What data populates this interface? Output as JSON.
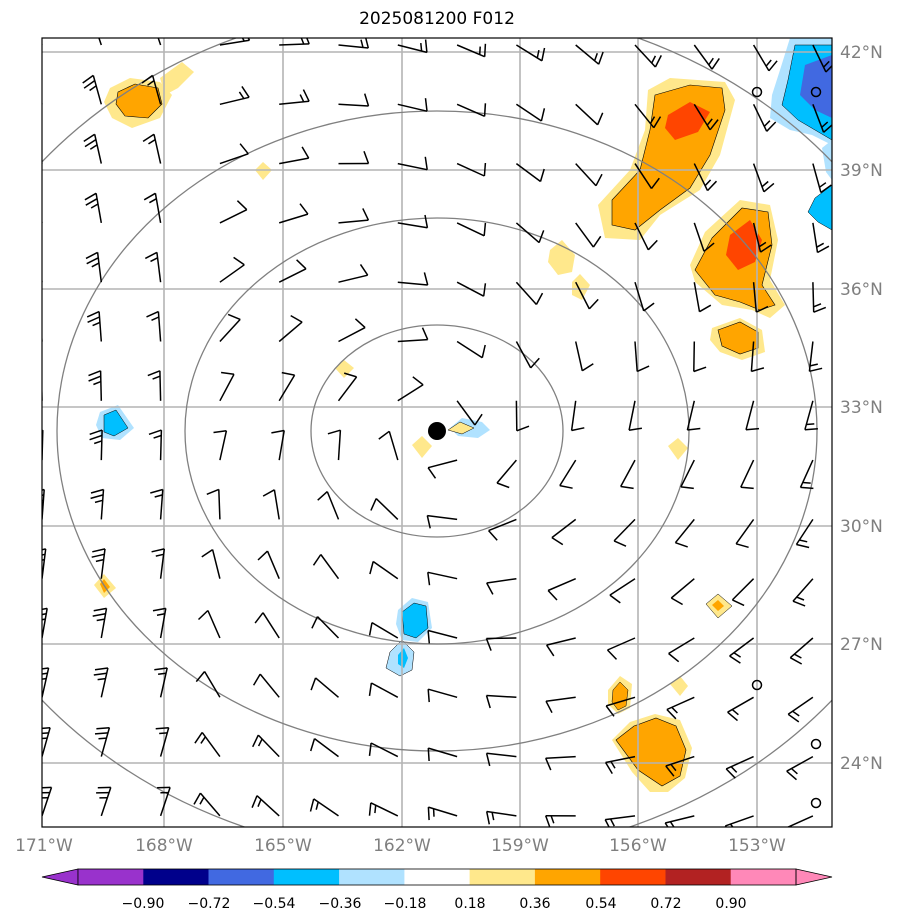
{
  "title": "2025081200 F012",
  "longitude_labels": [
    "171°W",
    "168°W",
    "165°W",
    "162°W",
    "159°W",
    "156°W",
    "153°W"
  ],
  "latitude_labels": [
    "42°N",
    "39°N",
    "36°N",
    "33°N",
    "30°N",
    "27°N",
    "24°N"
  ],
  "storm_center": {
    "lon": "161.1°W",
    "lat": "32.3°N"
  },
  "range_rings_count": 4,
  "colorbar": {
    "ticks": [
      "−0.90",
      "−0.72",
      "−0.54",
      "−0.36",
      "−0.18",
      "0.18",
      "0.36",
      "0.54",
      "0.72",
      "0.90"
    ],
    "colors": [
      "#9932cc",
      "#00008b",
      "#4169e1",
      "#00bfff",
      "#b0e2ff",
      "#ffffff",
      "#ffe88c",
      "#ffa500",
      "#ff4500",
      "#b22222",
      "#ff88b8"
    ]
  },
  "colors": {
    "grid": "#b4b4b4",
    "rings": "#808080",
    "shade_yellow": "#ffe88c",
    "shade_orange": "#ffa500",
    "shade_red": "#ff4500",
    "shade_lightblue": "#b0e2ff",
    "shade_blue": "#00bfff",
    "shade_darkblue": "#4169e1"
  }
}
